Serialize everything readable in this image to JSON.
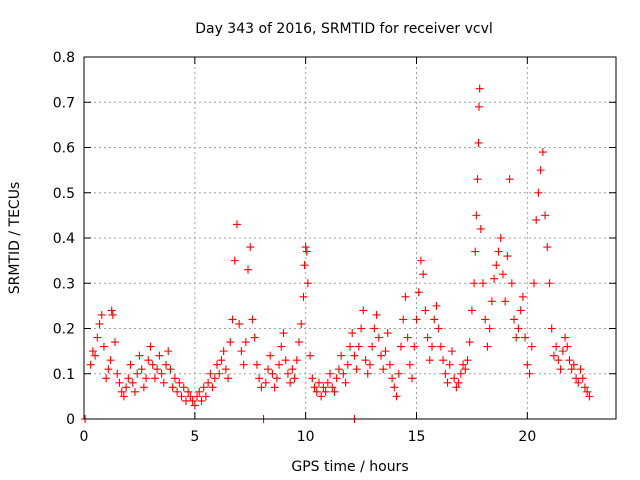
{
  "chart_data": {
    "type": "scatter",
    "title": "Day 343 of 2016, SRMTID for receiver vcvl",
    "xlabel": "GPS time / hours",
    "ylabel": "SRMTID / TECUs",
    "xlim": [
      0,
      24
    ],
    "ylim": [
      0,
      0.8
    ],
    "xticks": [
      0,
      5,
      10,
      15,
      20
    ],
    "yticks": [
      0,
      0.1,
      0.2,
      0.3,
      0.4,
      0.5,
      0.6,
      0.7,
      0.8
    ],
    "xtick_labels": [
      "0",
      "5",
      "10",
      "15",
      "20"
    ],
    "ytick_labels": [
      "0",
      "0.1",
      "0.2",
      "0.3",
      "0.4",
      "0.5",
      "0.6",
      "0.7",
      "0.8"
    ],
    "grid": true,
    "marker": "+",
    "color": "#ff0000",
    "series": [
      {
        "name": "SRMTID",
        "points": [
          [
            0.05,
            0.0
          ],
          [
            0.3,
            0.12
          ],
          [
            0.4,
            0.15
          ],
          [
            0.5,
            0.14
          ],
          [
            0.6,
            0.18
          ],
          [
            0.7,
            0.21
          ],
          [
            0.8,
            0.23
          ],
          [
            0.9,
            0.16
          ],
          [
            1.0,
            0.09
          ],
          [
            1.1,
            0.11
          ],
          [
            1.2,
            0.13
          ],
          [
            1.25,
            0.24
          ],
          [
            1.3,
            0.23
          ],
          [
            1.4,
            0.17
          ],
          [
            1.5,
            0.1
          ],
          [
            1.6,
            0.08
          ],
          [
            1.7,
            0.06
          ],
          [
            1.8,
            0.05
          ],
          [
            1.9,
            0.07
          ],
          [
            2.0,
            0.09
          ],
          [
            2.1,
            0.12
          ],
          [
            2.2,
            0.08
          ],
          [
            2.3,
            0.06
          ],
          [
            2.4,
            0.1
          ],
          [
            2.5,
            0.14
          ],
          [
            2.6,
            0.11
          ],
          [
            2.7,
            0.07
          ],
          [
            2.8,
            0.09
          ],
          [
            2.9,
            0.13
          ],
          [
            3.0,
            0.16
          ],
          [
            3.1,
            0.12
          ],
          [
            3.2,
            0.09
          ],
          [
            3.3,
            0.11
          ],
          [
            3.4,
            0.14
          ],
          [
            3.5,
            0.1
          ],
          [
            3.6,
            0.08
          ],
          [
            3.7,
            0.12
          ],
          [
            3.8,
            0.15
          ],
          [
            3.9,
            0.11
          ],
          [
            4.0,
            0.07
          ],
          [
            4.1,
            0.09
          ],
          [
            4.2,
            0.06
          ],
          [
            4.3,
            0.08
          ],
          [
            4.4,
            0.05
          ],
          [
            4.5,
            0.07
          ],
          [
            4.6,
            0.04
          ],
          [
            4.7,
            0.06
          ],
          [
            4.8,
            0.05
          ],
          [
            4.9,
            0.04
          ],
          [
            5.0,
            0.03
          ],
          [
            5.1,
            0.05
          ],
          [
            5.2,
            0.06
          ],
          [
            5.3,
            0.04
          ],
          [
            5.4,
            0.07
          ],
          [
            5.5,
            0.05
          ],
          [
            5.6,
            0.08
          ],
          [
            5.7,
            0.1
          ],
          [
            5.8,
            0.07
          ],
          [
            5.9,
            0.09
          ],
          [
            6.0,
            0.12
          ],
          [
            6.1,
            0.1
          ],
          [
            6.2,
            0.13
          ],
          [
            6.3,
            0.15
          ],
          [
            6.4,
            0.11
          ],
          [
            6.5,
            0.09
          ],
          [
            6.6,
            0.17
          ],
          [
            6.7,
            0.22
          ],
          [
            6.8,
            0.35
          ],
          [
            6.9,
            0.43
          ],
          [
            7.0,
            0.21
          ],
          [
            7.1,
            0.15
          ],
          [
            7.2,
            0.12
          ],
          [
            7.3,
            0.17
          ],
          [
            7.4,
            0.33
          ],
          [
            7.5,
            0.38
          ],
          [
            7.6,
            0.22
          ],
          [
            7.7,
            0.18
          ],
          [
            7.8,
            0.12
          ],
          [
            7.9,
            0.09
          ],
          [
            8.0,
            0.07
          ],
          [
            8.1,
            0.0
          ],
          [
            8.2,
            0.08
          ],
          [
            8.3,
            0.11
          ],
          [
            8.4,
            0.14
          ],
          [
            8.5,
            0.1
          ],
          [
            8.6,
            0.07
          ],
          [
            8.7,
            0.09
          ],
          [
            8.8,
            0.12
          ],
          [
            8.9,
            0.16
          ],
          [
            9.0,
            0.19
          ],
          [
            9.1,
            0.13
          ],
          [
            9.2,
            0.1
          ],
          [
            9.3,
            0.08
          ],
          [
            9.4,
            0.11
          ],
          [
            9.5,
            0.09
          ],
          [
            9.6,
            0.13
          ],
          [
            9.7,
            0.17
          ],
          [
            9.8,
            0.21
          ],
          [
            9.9,
            0.27
          ],
          [
            9.95,
            0.34
          ],
          [
            10.0,
            0.38
          ],
          [
            10.05,
            0.37
          ],
          [
            10.1,
            0.3
          ],
          [
            10.2,
            0.14
          ],
          [
            10.3,
            0.09
          ],
          [
            10.4,
            0.07
          ],
          [
            10.5,
            0.06
          ],
          [
            10.6,
            0.08
          ],
          [
            10.7,
            0.05
          ],
          [
            10.8,
            0.07
          ],
          [
            10.9,
            0.06
          ],
          [
            11.0,
            0.08
          ],
          [
            11.1,
            0.1
          ],
          [
            11.2,
            0.07
          ],
          [
            11.3,
            0.06
          ],
          [
            11.4,
            0.09
          ],
          [
            11.5,
            0.11
          ],
          [
            11.6,
            0.14
          ],
          [
            11.7,
            0.1
          ],
          [
            11.8,
            0.08
          ],
          [
            11.9,
            0.12
          ],
          [
            12.0,
            0.16
          ],
          [
            12.1,
            0.19
          ],
          [
            12.2,
            0.14
          ],
          [
            12.3,
            0.11
          ],
          [
            12.4,
            0.16
          ],
          [
            12.5,
            0.2
          ],
          [
            12.6,
            0.24
          ],
          [
            12.7,
            0.13
          ],
          [
            12.8,
            0.1
          ],
          [
            12.9,
            0.12
          ],
          [
            13.0,
            0.16
          ],
          [
            13.1,
            0.2
          ],
          [
            13.2,
            0.23
          ],
          [
            13.3,
            0.18
          ],
          [
            13.4,
            0.14
          ],
          [
            13.5,
            0.11
          ],
          [
            13.6,
            0.15
          ],
          [
            13.7,
            0.19
          ],
          [
            13.8,
            0.12
          ],
          [
            13.9,
            0.09
          ],
          [
            14.0,
            0.07
          ],
          [
            14.1,
            0.05
          ],
          [
            14.2,
            0.1
          ],
          [
            14.3,
            0.16
          ],
          [
            14.4,
            0.22
          ],
          [
            14.5,
            0.27
          ],
          [
            14.6,
            0.18
          ],
          [
            14.7,
            0.12
          ],
          [
            14.8,
            0.09
          ],
          [
            14.9,
            0.16
          ],
          [
            15.0,
            0.22
          ],
          [
            15.1,
            0.28
          ],
          [
            15.2,
            0.35
          ],
          [
            15.3,
            0.32
          ],
          [
            15.4,
            0.24
          ],
          [
            15.5,
            0.18
          ],
          [
            15.6,
            0.13
          ],
          [
            15.7,
            0.16
          ],
          [
            15.8,
            0.22
          ],
          [
            15.9,
            0.25
          ],
          [
            16.0,
            0.2
          ],
          [
            16.1,
            0.16
          ],
          [
            16.2,
            0.13
          ],
          [
            16.3,
            0.1
          ],
          [
            16.4,
            0.08
          ],
          [
            16.5,
            0.12
          ],
          [
            16.6,
            0.15
          ],
          [
            16.7,
            0.09
          ],
          [
            16.8,
            0.07
          ],
          [
            16.9,
            0.08
          ],
          [
            17.0,
            0.1
          ],
          [
            17.1,
            0.12
          ],
          [
            17.2,
            0.11
          ],
          [
            17.3,
            0.13
          ],
          [
            17.4,
            0.17
          ],
          [
            17.5,
            0.24
          ],
          [
            17.6,
            0.3
          ],
          [
            17.65,
            0.37
          ],
          [
            17.7,
            0.45
          ],
          [
            17.75,
            0.53
          ],
          [
            17.8,
            0.61
          ],
          [
            17.82,
            0.69
          ],
          [
            17.85,
            0.73
          ],
          [
            17.9,
            0.42
          ],
          [
            18.0,
            0.3
          ],
          [
            18.1,
            0.22
          ],
          [
            18.2,
            0.16
          ],
          [
            18.3,
            0.2
          ],
          [
            18.4,
            0.26
          ],
          [
            18.5,
            0.31
          ],
          [
            18.6,
            0.34
          ],
          [
            18.7,
            0.37
          ],
          [
            18.8,
            0.4
          ],
          [
            18.9,
            0.32
          ],
          [
            19.0,
            0.26
          ],
          [
            19.1,
            0.36
          ],
          [
            19.2,
            0.53
          ],
          [
            19.3,
            0.3
          ],
          [
            19.4,
            0.22
          ],
          [
            19.5,
            0.18
          ],
          [
            19.6,
            0.2
          ],
          [
            19.7,
            0.24
          ],
          [
            19.8,
            0.27
          ],
          [
            19.9,
            0.18
          ],
          [
            20.0,
            0.12
          ],
          [
            20.1,
            0.1
          ],
          [
            20.2,
            0.16
          ],
          [
            20.3,
            0.3
          ],
          [
            20.4,
            0.44
          ],
          [
            20.5,
            0.5
          ],
          [
            20.6,
            0.55
          ],
          [
            20.7,
            0.59
          ],
          [
            20.8,
            0.45
          ],
          [
            20.9,
            0.38
          ],
          [
            21.0,
            0.3
          ],
          [
            21.1,
            0.2
          ],
          [
            21.2,
            0.14
          ],
          [
            21.3,
            0.16
          ],
          [
            21.4,
            0.13
          ],
          [
            21.5,
            0.11
          ],
          [
            21.6,
            0.15
          ],
          [
            21.7,
            0.18
          ],
          [
            21.8,
            0.16
          ],
          [
            21.9,
            0.13
          ],
          [
            22.0,
            0.11
          ],
          [
            22.1,
            0.12
          ],
          [
            22.2,
            0.09
          ],
          [
            22.3,
            0.08
          ],
          [
            22.4,
            0.11
          ],
          [
            22.5,
            0.09
          ],
          [
            22.6,
            0.07
          ],
          [
            22.7,
            0.06
          ],
          [
            22.8,
            0.05
          ],
          [
            12.2,
            0.0
          ]
        ]
      }
    ]
  }
}
